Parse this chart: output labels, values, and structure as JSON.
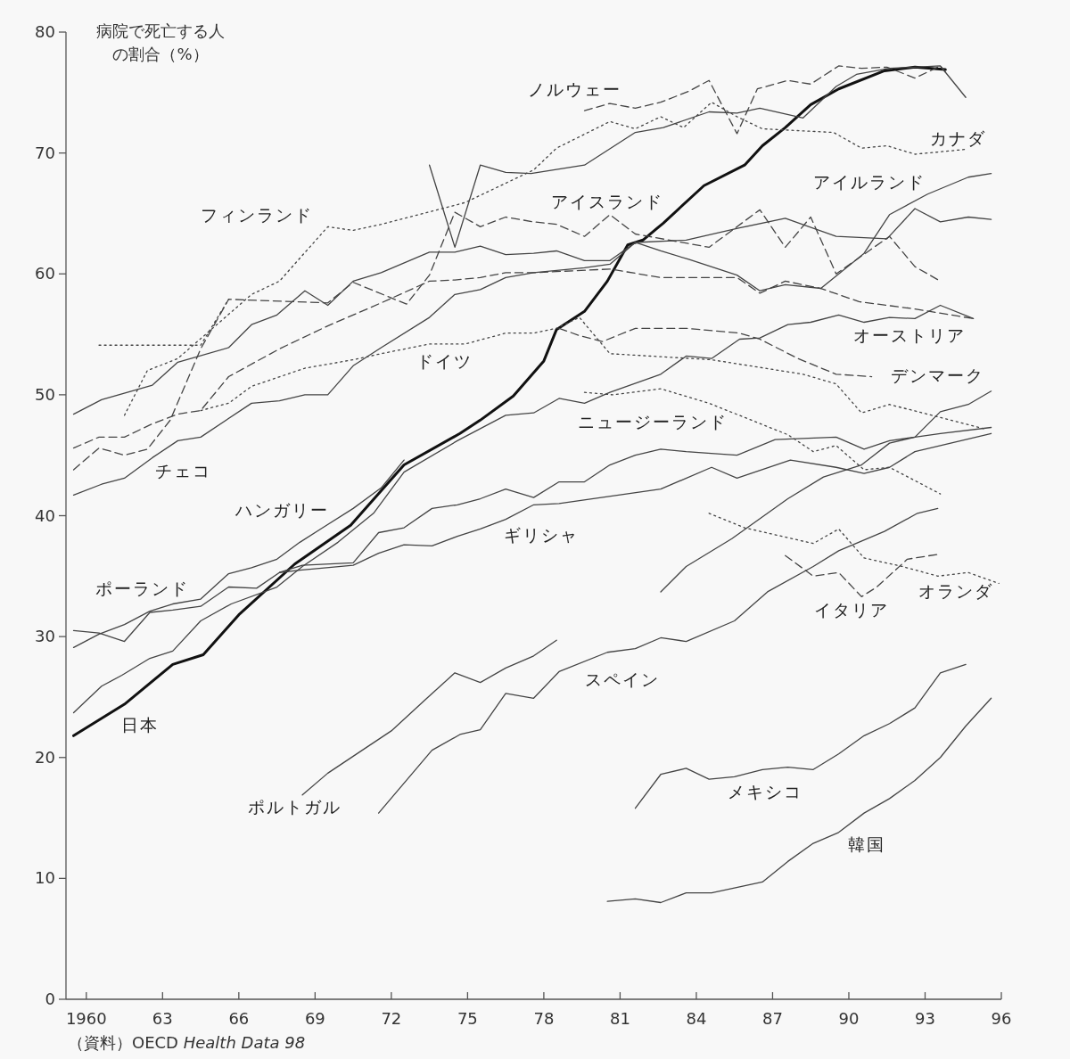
{
  "chart_data": {
    "type": "line",
    "ylabel": "病院で死亡する人の割合（%）",
    "xlim": [
      1959.2,
      1996
    ],
    "ylim": [
      0,
      80
    ],
    "xticks": [
      1960,
      {
        "value": 1963,
        "label": "63"
      },
      {
        "value": 1966,
        "label": "66"
      },
      {
        "value": 1969,
        "label": "69"
      },
      {
        "value": 1972,
        "label": "72"
      },
      {
        "value": 1975,
        "label": "75"
      },
      {
        "value": 1978,
        "label": "78"
      },
      {
        "value": 1981,
        "label": "81"
      },
      {
        "value": 1984,
        "label": "84"
      },
      {
        "value": 1987,
        "label": "87"
      },
      {
        "value": 1990,
        "label": "90"
      },
      {
        "value": 1993,
        "label": "93"
      },
      {
        "value": 1996,
        "label": "96"
      }
    ],
    "yticks": [
      0,
      10,
      20,
      30,
      40,
      50,
      60,
      70,
      80
    ],
    "grid": false,
    "series": [
      {
        "color": "#111111",
        "line_style": "solid",
        "x": [
          1959.5,
          1961.5,
          1963.4,
          1964.6,
          1966,
          1968.2,
          1970.4,
          1972.5,
          1974.7,
          1975.5,
          1976.8,
          1978,
          1978.5,
          1979.6,
          1980.5,
          1981.3,
          1981.9,
          1982.7,
          1984.3,
          1985.9,
          1986.6,
          1987.5,
          1988.5,
          1989.6,
          1991.4,
          1992.6,
          1993.8
        ],
        "values": [
          21.8,
          24.4,
          27.7,
          28.5,
          31.8,
          36.0,
          39.2,
          44.2,
          46.8,
          47.9,
          49.9,
          52.8,
          55.4,
          56.9,
          59.4,
          62.4,
          62.8,
          64.2,
          67.3,
          69.0,
          70.6,
          72.1,
          74.0,
          75.3,
          76.8,
          77.1,
          76.9
        ]
      },
      {
        "color": "#444444",
        "line_style": "dashed",
        "x": [
          1979.6,
          1980.6,
          1981.6,
          1982.6,
          1983.7,
          1984.5,
          1985.6,
          1986.4,
          1987.6,
          1988.5,
          1989.6,
          1990.5,
          1991.5,
          1992.6,
          1993.6,
          1993.8
        ],
        "values": [
          73.5,
          74.1,
          73.7,
          74.2,
          75.1,
          76.0,
          71.6,
          75.3,
          76.0,
          75.7,
          77.2,
          77.0,
          77.1,
          76.2,
          77.2,
          76.7
        ]
      },
      {
        "color": "#444444",
        "line_style": "solid",
        "x": [
          1973.5,
          1974.5,
          1975.5,
          1976.5,
          1977.5,
          1979.6,
          1981.6,
          1982.7,
          1984.5,
          1985.6,
          1986.5,
          1988.2,
          1989.5,
          1990.3,
          1991.6,
          1993.6,
          1994.6
        ],
        "values": [
          69.0,
          62.2,
          69.0,
          68.4,
          68.3,
          69.0,
          71.7,
          72.1,
          73.4,
          73.3,
          73.7,
          72.9,
          75.5,
          76.5,
          77.0,
          77.2,
          74.6
        ]
      },
      {
        "color": "#444444",
        "line_style": "dotted",
        "x": [
          1961.5,
          1962.4,
          1963.6,
          1966.5,
          1967.6,
          1969.5,
          1970.5,
          1971.6,
          1974.9,
          1977.6,
          1978.5,
          1980.6,
          1981.6,
          1982.6,
          1983.5,
          1984.6,
          1985.6,
          1986.6,
          1989.4,
          1990.5,
          1991.5,
          1992.6,
          1994.6
        ],
        "values": [
          48.3,
          52.0,
          53.0,
          58.3,
          59.4,
          63.9,
          63.6,
          64.1,
          65.9,
          68.6,
          70.4,
          72.6,
          72.0,
          73.0,
          72.1,
          74.2,
          73.0,
          72.0,
          71.7,
          70.4,
          70.6,
          69.9,
          70.3
        ]
      },
      {
        "color": "#444444",
        "line_style": "dotted",
        "x": [
          1960.5,
          1964.5,
          1965.6
        ],
        "values": [
          54.1,
          54.1,
          57.9
        ]
      },
      {
        "color": "#444444",
        "line_style": "solid",
        "x": [
          1959.5,
          1960.6,
          1962.6,
          1963.6,
          1965.6,
          1966.5,
          1967.5,
          1968.6,
          1969.5,
          1970.5,
          1971.6,
          1973.5,
          1974.5,
          1975.5,
          1976.5,
          1977.6,
          1978.5,
          1979.6,
          1980.6,
          1981.6,
          1983.6,
          1985.7,
          1987.5,
          1989.5,
          1991.5,
          1992.6,
          1993.6,
          1994.7,
          1995.6
        ],
        "values": [
          48.4,
          49.6,
          50.8,
          52.7,
          53.9,
          55.8,
          56.6,
          58.6,
          57.4,
          59.4,
          60.1,
          61.8,
          61.8,
          62.3,
          61.6,
          61.7,
          61.9,
          61.1,
          61.1,
          62.6,
          62.8,
          63.8,
          64.6,
          63.1,
          62.9,
          65.4,
          64.3,
          64.7,
          64.5
        ]
      },
      {
        "color": "#444444",
        "line_style": "dashed",
        "x": [
          1959.5,
          1960.5,
          1961.5,
          1962.6,
          1963.6,
          1964.5,
          1965.6,
          1967.6,
          1969.5,
          1971.6,
          1973.5,
          1974.5,
          1975.5,
          1976.5,
          1977.6,
          1980.6,
          1982.6,
          1985.6,
          1986.5,
          1987.5,
          1988.9,
          1990.4,
          1992.6,
          1994.9
        ],
        "values": [
          45.6,
          46.5,
          46.5,
          47.6,
          48.4,
          48.7,
          51.5,
          53.8,
          55.7,
          57.6,
          59.4,
          59.5,
          59.7,
          60.1,
          60.1,
          60.4,
          59.7,
          59.7,
          58.4,
          59.4,
          58.8,
          57.7,
          57.1,
          56.3
        ]
      },
      {
        "color": "#444444",
        "line_style": "solid",
        "x": [
          1959.5,
          1960.6,
          1961.5,
          1962.6,
          1963.6,
          1964.5,
          1966.5,
          1967.6,
          1968.6,
          1969.5,
          1970.5,
          1971.6,
          1973.5,
          1974.5,
          1975.5,
          1976.5,
          1977.6,
          1979.6,
          1980.6,
          1981.6,
          1982.6,
          1983.7,
          1985.6,
          1986.5,
          1987.5,
          1988.9,
          1990.6,
          1991.6,
          1993.1,
          1994.7,
          1995.6
        ],
        "values": [
          41.7,
          42.6,
          43.1,
          44.8,
          46.2,
          46.5,
          49.3,
          49.5,
          50.0,
          50.0,
          52.4,
          53.9,
          56.4,
          58.3,
          58.7,
          59.7,
          60.1,
          60.5,
          60.8,
          62.6,
          61.9,
          61.2,
          59.9,
          58.6,
          59.1,
          58.8,
          61.7,
          64.9,
          66.6,
          68.0,
          68.3
        ]
      },
      {
        "color": "#444444",
        "line_style": "dashed",
        "x": [
          1959.5,
          1960.5,
          1961.5,
          1962.4,
          1963.3,
          1964.5,
          1965.6,
          1969.5,
          1970.5,
          1972.6,
          1973.5,
          1974.5,
          1975.5,
          1976.5,
          1977.6,
          1978.5,
          1979.6,
          1980.6,
          1981.6,
          1984.5,
          1986.5,
          1987.5,
          1988.5,
          1989.5,
          1991.6,
          1992.6,
          1993.6
        ],
        "values": [
          43.8,
          45.6,
          45.0,
          45.5,
          47.9,
          53.8,
          57.9,
          57.6,
          59.3,
          57.5,
          59.9,
          65.1,
          63.9,
          64.7,
          64.3,
          64.1,
          63.1,
          64.9,
          63.3,
          62.2,
          65.3,
          62.2,
          64.7,
          60.0,
          63.1,
          60.6,
          59.4
        ]
      },
      {
        "color": "#444444",
        "line_style": "dotted",
        "x": [
          1964.5,
          1965.6,
          1966.5,
          1968.6,
          1970.5,
          1971.6,
          1973.5,
          1974.9,
          1976.5,
          1977.6,
          1978.5,
          1979.4,
          1980.6,
          1984.6,
          1988.2,
          1989.5,
          1990.5,
          1991.6,
          1995.3
        ],
        "values": [
          48.7,
          49.3,
          50.7,
          52.2,
          52.9,
          53.4,
          54.2,
          54.2,
          55.1,
          55.1,
          55.5,
          56.4,
          53.4,
          52.9,
          51.7,
          50.9,
          48.5,
          49.2,
          47.2
        ]
      },
      {
        "color": "#444444",
        "line_style": "dashed",
        "x": [
          1978.6,
          1979.4,
          1980.3,
          1981.6,
          1983.6,
          1985.7,
          1986.5,
          1988.0,
          1989.5,
          1990.9
        ],
        "values": [
          55.5,
          54.9,
          54.4,
          55.5,
          55.5,
          55.1,
          54.6,
          53.0,
          51.7,
          51.5
        ]
      },
      {
        "color": "#444444",
        "line_style": "solid",
        "x": [
          1959.5,
          1960.6,
          1961.4,
          1962.5,
          1963.4,
          1964.5,
          1965.7,
          1967.5,
          1968.5,
          1969.9,
          1971.3,
          1972.5,
          1974.6,
          1976.5,
          1977.6,
          1978.6,
          1979.6,
          1980.6,
          1982.6,
          1983.6,
          1984.6,
          1985.7,
          1986.5,
          1987.6,
          1988.5,
          1989.6,
          1990.6,
          1991.6,
          1992.6,
          1993.6,
          1994.9
        ],
        "values": [
          23.7,
          25.9,
          26.8,
          28.2,
          28.8,
          31.3,
          32.7,
          34.1,
          35.8,
          37.8,
          40.2,
          43.6,
          46.2,
          48.3,
          48.5,
          49.7,
          49.3,
          50.2,
          51.7,
          53.2,
          53.0,
          54.6,
          54.7,
          55.8,
          56.0,
          56.6,
          56.0,
          56.4,
          56.3,
          57.4,
          56.3
        ]
      },
      {
        "color": "#444444",
        "line_style": "solid",
        "x": [
          1959.5,
          1960.5,
          1961.5,
          1962.5,
          1963.4,
          1964.5,
          1965.6,
          1966.5,
          1967.5,
          1968.4,
          1969.3,
          1970.5,
          1971.6,
          1972.5
        ],
        "values": [
          29.1,
          30.2,
          31.0,
          32.1,
          32.7,
          33.1,
          35.2,
          35.7,
          36.4,
          37.8,
          39.0,
          40.6,
          42.3,
          44.6
        ]
      },
      {
        "color": "#444444",
        "line_style": "solid",
        "x": [
          1959.5,
          1960.5,
          1961.5,
          1962.5,
          1963.4,
          1964.5,
          1965.6,
          1966.7,
          1967.6,
          1968.5,
          1970.5,
          1971.5,
          1972.5,
          1973.6,
          1974.6,
          1975.5,
          1976.5,
          1977.6,
          1978.6,
          1979.6,
          1980.6,
          1981.6,
          1982.6,
          1983.6,
          1985.6,
          1987.1,
          1989.5,
          1990.6,
          1991.6,
          1992.6,
          1993.6,
          1995.6
        ],
        "values": [
          30.5,
          30.3,
          29.6,
          32.0,
          32.2,
          32.5,
          34.1,
          34.0,
          35.3,
          35.9,
          36.1,
          38.6,
          39.0,
          40.6,
          40.9,
          41.4,
          42.2,
          41.5,
          42.8,
          42.8,
          44.2,
          45.0,
          45.5,
          45.3,
          45.0,
          46.3,
          46.5,
          45.5,
          46.2,
          46.5,
          46.8,
          47.3
        ]
      },
      {
        "color": "#444444",
        "line_style": "solid",
        "x": [
          1967.6,
          1968.4,
          1970.5,
          1971.5,
          1972.5,
          1973.6,
          1974.6,
          1975.5,
          1976.5,
          1977.6,
          1978.6,
          1982.6,
          1984.6,
          1985.6,
          1987.7,
          1989.5,
          1990.6,
          1991.6,
          1992.6,
          1995.6
        ],
        "values": [
          35.3,
          35.5,
          35.9,
          36.9,
          37.6,
          37.5,
          38.3,
          38.9,
          39.7,
          40.9,
          41.0,
          42.2,
          44.0,
          43.1,
          44.6,
          44.0,
          43.5,
          44.0,
          45.3,
          46.8
        ]
      },
      {
        "color": "#444444",
        "line_style": "solid",
        "x": [
          1982.6,
          1983.6,
          1985.4,
          1987.6,
          1989.0,
          1990.5,
          1991.6,
          1992.6,
          1993.6,
          1994.7,
          1995.6
        ],
        "values": [
          33.7,
          35.8,
          38.1,
          41.4,
          43.2,
          44.2,
          46.0,
          46.5,
          48.6,
          49.2,
          50.3
        ]
      },
      {
        "color": "#444444",
        "line_style": "dotted",
        "x": [
          1979.6,
          1980.7,
          1982.6,
          1984.5,
          1987.6,
          1988.6,
          1989.5,
          1990.6,
          1991.6,
          1993.6
        ],
        "values": [
          50.2,
          50.0,
          50.5,
          49.3,
          46.7,
          45.3,
          45.8,
          43.8,
          44.0,
          41.8
        ]
      },
      {
        "color": "#444444",
        "line_style": "dotted",
        "x": [
          1984.5,
          1985.9,
          1988.6,
          1989.6,
          1990.6,
          1992.1,
          1993.5,
          1994.7,
          1995.9
        ],
        "values": [
          40.2,
          39.0,
          37.7,
          38.9,
          36.5,
          35.8,
          35.0,
          35.3,
          34.4
        ]
      },
      {
        "color": "#444444",
        "line_style": "dashed",
        "x": [
          1987.5,
          1988.6,
          1989.6,
          1990.5,
          1991.1,
          1992.3,
          1993.5
        ],
        "values": [
          36.7,
          35.0,
          35.3,
          33.3,
          34.1,
          36.4,
          36.8
        ]
      },
      {
        "color": "#444444",
        "line_style": "solid",
        "x": [
          1971.5,
          1973.6,
          1974.7,
          1975.5,
          1976.5,
          1977.6,
          1978.6,
          1980.5,
          1981.6,
          1982.6,
          1983.6,
          1985.5,
          1986.8,
          1988.6,
          1989.6,
          1991.4,
          1992.7,
          1993.5
        ],
        "values": [
          15.4,
          20.6,
          21.9,
          22.3,
          25.3,
          24.9,
          27.1,
          28.7,
          29.0,
          29.9,
          29.6,
          31.3,
          33.7,
          35.8,
          37.1,
          38.7,
          40.2,
          40.6
        ]
      },
      {
        "color": "#444444",
        "line_style": "solid",
        "x": [
          1968.5,
          1969.5,
          1970.5,
          1972.0,
          1973.4,
          1974.5,
          1975.5,
          1976.5,
          1977.6,
          1978.5
        ],
        "values": [
          16.9,
          18.7,
          20.1,
          22.2,
          24.9,
          27.0,
          26.2,
          27.4,
          28.4,
          29.7
        ]
      },
      {
        "color": "#444444",
        "line_style": "solid",
        "x": [
          1981.6,
          1982.6,
          1983.6,
          1984.5,
          1985.5,
          1986.6,
          1987.6,
          1988.6,
          1989.6,
          1990.6,
          1991.6,
          1992.6,
          1993.6,
          1994.6
        ],
        "values": [
          15.8,
          18.6,
          19.1,
          18.2,
          18.4,
          19.0,
          19.2,
          19.0,
          20.3,
          21.8,
          22.8,
          24.1,
          27.0,
          27.7
        ]
      },
      {
        "color": "#444444",
        "line_style": "solid",
        "x": [
          1980.5,
          1981.6,
          1982.6,
          1983.6,
          1984.6,
          1985.5,
          1986.6,
          1987.6,
          1988.6,
          1989.6,
          1990.6,
          1991.6,
          1992.6,
          1993.6,
          1994.6,
          1995.6
        ],
        "values": [
          8.1,
          8.3,
          8.0,
          8.8,
          8.8,
          9.2,
          9.7,
          11.4,
          12.9,
          13.8,
          15.4,
          16.6,
          18.1,
          20.0,
          22.6,
          24.9
        ]
      }
    ],
    "annotations": [
      "ノルウェー",
      "カナダ",
      "アイルランド",
      "フィンランド",
      "アイスランド",
      "ドイツ",
      "オーストリア",
      "デンマーク",
      "ニュージーランド",
      "チェコ",
      "ハンガリー",
      "ギリシャ",
      "ポーランド",
      "オランダ",
      "イタリア",
      "スペイン",
      "日本",
      "ポルトガル",
      "メキシコ",
      "韓国",
      "（資料）OECD *Health Data 98*"
    ]
  }
}
